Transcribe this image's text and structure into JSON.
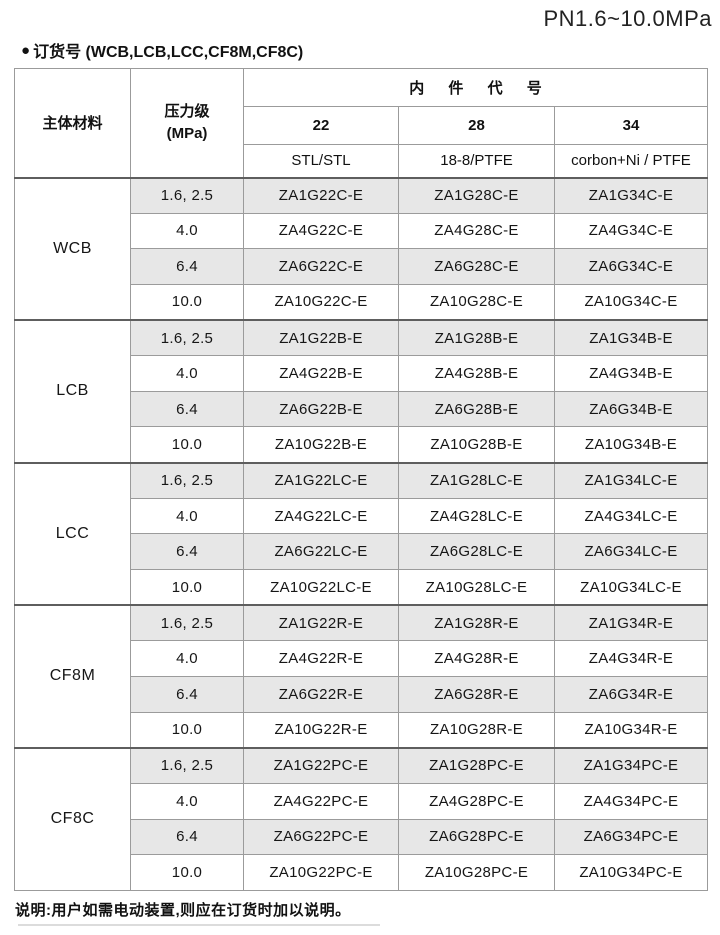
{
  "page": {
    "title": "PN1.6~10.0MPa",
    "bullet": "●",
    "section_heading": "订货号 (WCB,LCB,LCC,CF8M,CF8C)",
    "note": "说明:用户如需电动装置,则应在订货时加以说明。"
  },
  "table": {
    "headers": {
      "material": "主体材料",
      "pressure_label": "压力级",
      "pressure_unit": "(MPa)",
      "trim_title": "内 件 代 号",
      "trim_columns": [
        "22",
        "28",
        "34"
      ],
      "trim_materials": [
        "STL/STL",
        "18-8/PTFE",
        "corbon+Ni / PTFE"
      ]
    },
    "colors": {
      "shaded_row_bg": "#e7e7e7",
      "border_light": "#9b9b9b",
      "border_dark": "#5e5e5e",
      "text": "#161616"
    },
    "groups": [
      {
        "material": "WCB",
        "rows": [
          {
            "pressure": "1.6, 2.5",
            "codes": [
              "ZA1G22C-E",
              "ZA1G28C-E",
              "ZA1G34C-E"
            ],
            "shaded": true
          },
          {
            "pressure": "4.0",
            "codes": [
              "ZA4G22C-E",
              "ZA4G28C-E",
              "ZA4G34C-E"
            ],
            "shaded": false
          },
          {
            "pressure": "6.4",
            "codes": [
              "ZA6G22C-E",
              "ZA6G28C-E",
              "ZA6G34C-E"
            ],
            "shaded": true
          },
          {
            "pressure": "10.0",
            "codes": [
              "ZA10G22C-E",
              "ZA10G28C-E",
              "ZA10G34C-E"
            ],
            "shaded": false
          }
        ]
      },
      {
        "material": "LCB",
        "rows": [
          {
            "pressure": "1.6, 2.5",
            "codes": [
              "ZA1G22B-E",
              "ZA1G28B-E",
              "ZA1G34B-E"
            ],
            "shaded": true
          },
          {
            "pressure": "4.0",
            "codes": [
              "ZA4G22B-E",
              "ZA4G28B-E",
              "ZA4G34B-E"
            ],
            "shaded": false
          },
          {
            "pressure": "6.4",
            "codes": [
              "ZA6G22B-E",
              "ZA6G28B-E",
              "ZA6G34B-E"
            ],
            "shaded": true
          },
          {
            "pressure": "10.0",
            "codes": [
              "ZA10G22B-E",
              "ZA10G28B-E",
              "ZA10G34B-E"
            ],
            "shaded": false
          }
        ]
      },
      {
        "material": "LCC",
        "rows": [
          {
            "pressure": "1.6, 2.5",
            "codes": [
              "ZA1G22LC-E",
              "ZA1G28LC-E",
              "ZA1G34LC-E"
            ],
            "shaded": true
          },
          {
            "pressure": "4.0",
            "codes": [
              "ZA4G22LC-E",
              "ZA4G28LC-E",
              "ZA4G34LC-E"
            ],
            "shaded": false
          },
          {
            "pressure": "6.4",
            "codes": [
              "ZA6G22LC-E",
              "ZA6G28LC-E",
              "ZA6G34LC-E"
            ],
            "shaded": true
          },
          {
            "pressure": "10.0",
            "codes": [
              "ZA10G22LC-E",
              "ZA10G28LC-E",
              "ZA10G34LC-E"
            ],
            "shaded": false
          }
        ]
      },
      {
        "material": "CF8M",
        "rows": [
          {
            "pressure": "1.6, 2.5",
            "codes": [
              "ZA1G22R-E",
              "ZA1G28R-E",
              "ZA1G34R-E"
            ],
            "shaded": true
          },
          {
            "pressure": "4.0",
            "codes": [
              "ZA4G22R-E",
              "ZA4G28R-E",
              "ZA4G34R-E"
            ],
            "shaded": false
          },
          {
            "pressure": "6.4",
            "codes": [
              "ZA6G22R-E",
              "ZA6G28R-E",
              "ZA6G34R-E"
            ],
            "shaded": true
          },
          {
            "pressure": "10.0",
            "codes": [
              "ZA10G22R-E",
              "ZA10G28R-E",
              "ZA10G34R-E"
            ],
            "shaded": false
          }
        ]
      },
      {
        "material": "CF8C",
        "rows": [
          {
            "pressure": "1.6, 2.5",
            "codes": [
              "ZA1G22PC-E",
              "ZA1G28PC-E",
              "ZA1G34PC-E"
            ],
            "shaded": true
          },
          {
            "pressure": "4.0",
            "codes": [
              "ZA4G22PC-E",
              "ZA4G28PC-E",
              "ZA4G34PC-E"
            ],
            "shaded": false
          },
          {
            "pressure": "6.4",
            "codes": [
              "ZA6G22PC-E",
              "ZA6G28PC-E",
              "ZA6G34PC-E"
            ],
            "shaded": true
          },
          {
            "pressure": "10.0",
            "codes": [
              "ZA10G22PC-E",
              "ZA10G28PC-E",
              "ZA10G34PC-E"
            ],
            "shaded": false
          }
        ]
      }
    ]
  }
}
